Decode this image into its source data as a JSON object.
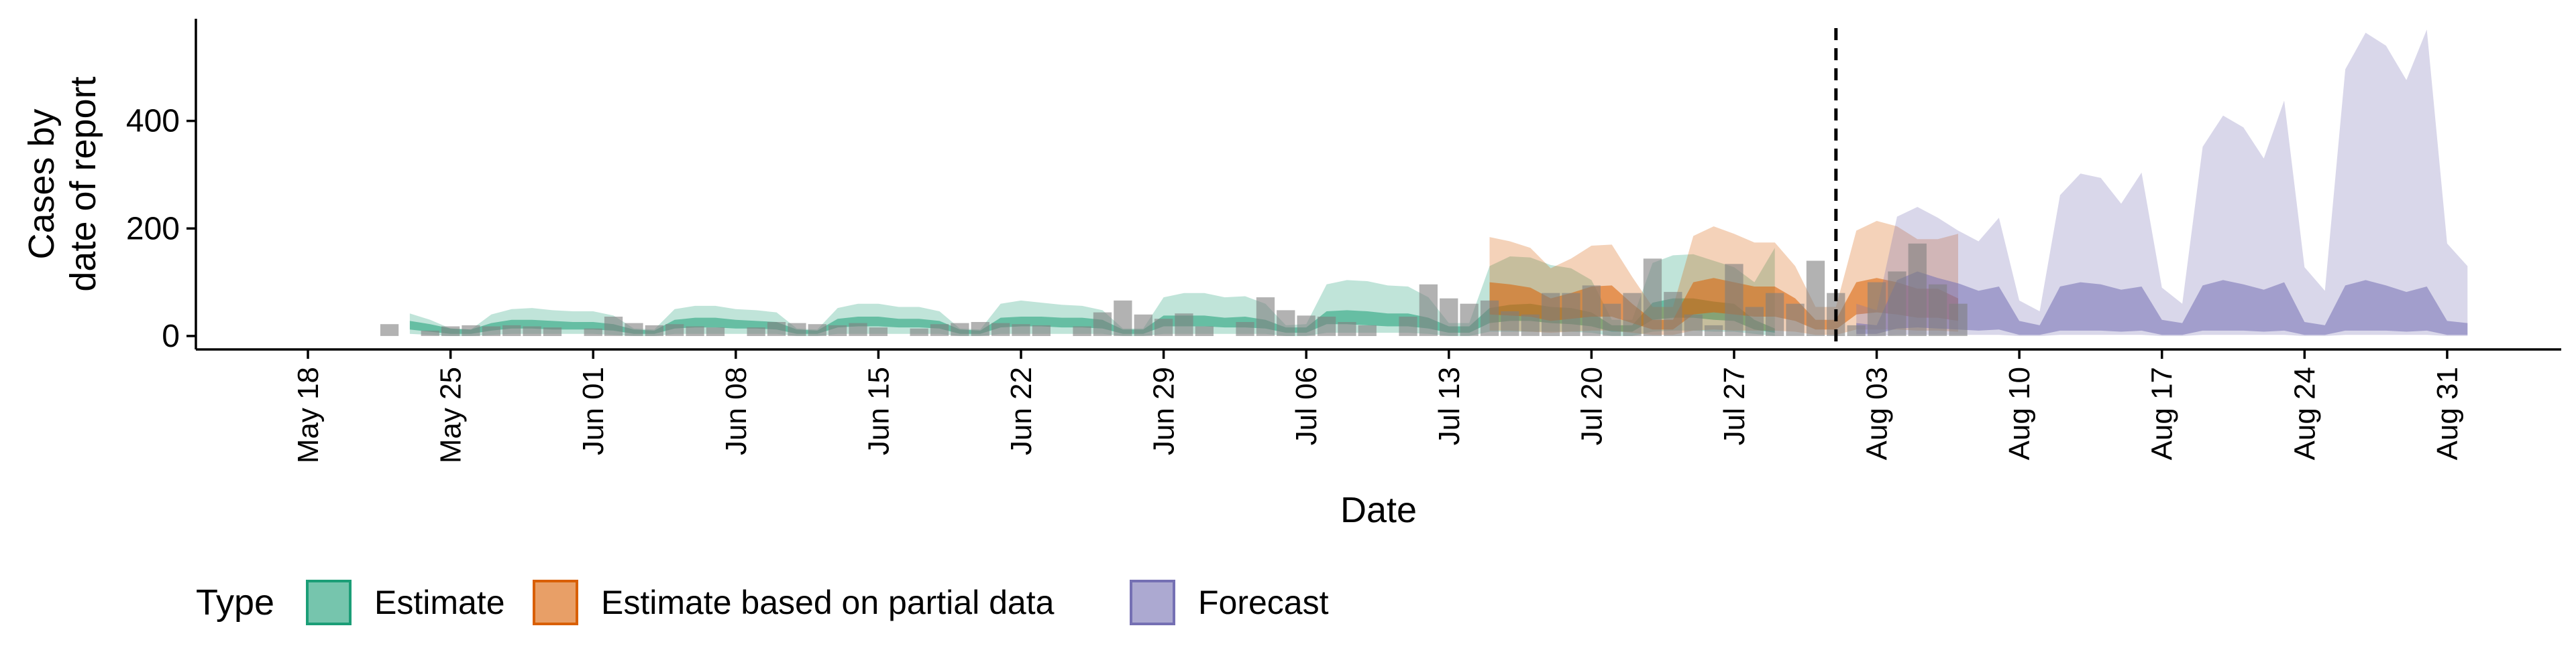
{
  "chart_data": {
    "type": "area",
    "xlabel": "Date",
    "ylabel": [
      "Cases by",
      "date of report"
    ],
    "x_range": [
      "2020-05-18",
      "2020-08-31"
    ],
    "ylim": [
      -25,
      590
    ],
    "y_ticks": [
      0,
      200,
      400
    ],
    "x_ticks": [
      {
        "date": "2020-05-18",
        "label": "May 18"
      },
      {
        "date": "2020-05-25",
        "label": "May 25"
      },
      {
        "date": "2020-06-01",
        "label": "Jun 01"
      },
      {
        "date": "2020-06-08",
        "label": "Jun 08"
      },
      {
        "date": "2020-06-15",
        "label": "Jun 15"
      },
      {
        "date": "2020-06-22",
        "label": "Jun 22"
      },
      {
        "date": "2020-06-29",
        "label": "Jun 29"
      },
      {
        "date": "2020-07-06",
        "label": "Jul 06"
      },
      {
        "date": "2020-07-13",
        "label": "Jul 13"
      },
      {
        "date": "2020-07-20",
        "label": "Jul 20"
      },
      {
        "date": "2020-07-27",
        "label": "Jul 27"
      },
      {
        "date": "2020-08-03",
        "label": "Aug 03"
      },
      {
        "date": "2020-08-10",
        "label": "Aug 10"
      },
      {
        "date": "2020-08-17",
        "label": "Aug 17"
      },
      {
        "date": "2020-08-24",
        "label": "Aug 24"
      },
      {
        "date": "2020-08-31",
        "label": "Aug 31"
      }
    ],
    "forecast_date": "2020-08-01",
    "grid": false,
    "legend": {
      "title": "Type",
      "position": "bottom",
      "entries": [
        {
          "label": "Estimate",
          "color": "#1b9e77"
        },
        {
          "label": "Estimate based on partial data",
          "color": "#d95f02"
        },
        {
          "label": "Forecast",
          "color": "#7570b3"
        }
      ]
    },
    "bar_color": "#7f7f7f",
    "series": [
      {
        "name": "Estimate",
        "color": "#1b9e77",
        "start_date": "2020-05-23",
        "inner_upper": [
          28,
          22,
          14,
          12,
          24,
          30,
          30,
          28,
          26,
          26,
          22,
          12,
          10,
          30,
          34,
          34,
          30,
          28,
          26,
          12,
          10,
          32,
          36,
          36,
          32,
          32,
          28,
          12,
          10,
          34,
          36,
          36,
          34,
          34,
          30,
          12,
          12,
          38,
          38,
          38,
          34,
          36,
          30,
          16,
          16,
          46,
          48,
          46,
          42,
          42,
          34,
          18,
          18,
          52,
          58,
          60,
          54,
          52,
          44,
          20,
          20,
          62,
          70,
          70,
          64,
          60,
          30,
          14
        ],
        "inner_lower": [
          12,
          8,
          4,
          4,
          10,
          14,
          14,
          12,
          12,
          12,
          10,
          4,
          4,
          14,
          16,
          16,
          14,
          14,
          12,
          4,
          4,
          16,
          18,
          18,
          16,
          16,
          14,
          4,
          4,
          16,
          18,
          18,
          16,
          16,
          14,
          4,
          4,
          18,
          18,
          18,
          16,
          16,
          14,
          6,
          6,
          22,
          22,
          20,
          18,
          18,
          14,
          6,
          6,
          24,
          28,
          28,
          24,
          22,
          18,
          8,
          8,
          30,
          34,
          34,
          30,
          28,
          12,
          6
        ],
        "outer_upper": [
          42,
          30,
          14,
          12,
          40,
          50,
          52,
          48,
          46,
          46,
          38,
          14,
          12,
          50,
          56,
          56,
          50,
          48,
          44,
          14,
          12,
          52,
          60,
          60,
          54,
          54,
          46,
          14,
          12,
          60,
          66,
          62,
          58,
          56,
          48,
          14,
          14,
          72,
          80,
          80,
          72,
          74,
          60,
          20,
          22,
          96,
          104,
          102,
          94,
          92,
          72,
          24,
          24,
          130,
          148,
          146,
          132,
          126,
          104,
          30,
          30,
          136,
          150,
          152,
          140,
          128,
          100,
          164
        ],
        "outer_lower": [
          4,
          2,
          0,
          0,
          2,
          4,
          4,
          4,
          4,
          4,
          2,
          0,
          0,
          4,
          4,
          4,
          4,
          4,
          4,
          0,
          0,
          4,
          4,
          4,
          4,
          4,
          4,
          0,
          0,
          4,
          4,
          4,
          4,
          4,
          4,
          0,
          0,
          4,
          4,
          4,
          4,
          4,
          4,
          0,
          0,
          6,
          6,
          6,
          6,
          6,
          4,
          0,
          0,
          8,
          8,
          8,
          8,
          8,
          6,
          0,
          0,
          8,
          10,
          10,
          8,
          8,
          4,
          0
        ]
      },
      {
        "name": "Estimate based on partial data",
        "color": "#d95f02",
        "start_date": "2020-07-15",
        "inner_upper": [
          100,
          96,
          90,
          70,
          80,
          92,
          94,
          60,
          30,
          30,
          100,
          108,
          100,
          92,
          92,
          70,
          30,
          30,
          100,
          108,
          100,
          88,
          88,
          70
        ],
        "inner_lower": [
          40,
          38,
          36,
          28,
          32,
          36,
          36,
          24,
          12,
          12,
          40,
          44,
          40,
          36,
          36,
          28,
          12,
          12,
          40,
          44,
          40,
          34,
          34,
          28
        ],
        "outer_upper": [
          184,
          176,
          164,
          126,
          144,
          168,
          170,
          110,
          54,
          54,
          186,
          204,
          190,
          174,
          174,
          130,
          54,
          54,
          196,
          214,
          204,
          180,
          180,
          190
        ],
        "outer_lower": [
          10,
          10,
          8,
          6,
          8,
          10,
          10,
          6,
          2,
          2,
          10,
          12,
          10,
          10,
          10,
          8,
          2,
          2,
          12,
          12,
          12,
          10,
          10,
          8
        ]
      },
      {
        "name": "Forecast",
        "color": "#7570b3",
        "start_date": "2020-08-02",
        "inner_upper": [
          24,
          20,
          104,
          120,
          108,
          98,
          84,
          92,
          28,
          20,
          92,
          100,
          96,
          86,
          92,
          30,
          24,
          94,
          104,
          96,
          86,
          100,
          26,
          20,
          94,
          104,
          94,
          82,
          92,
          28,
          24
        ],
        "inner_lower": [
          4,
          4,
          14,
          16,
          14,
          12,
          10,
          12,
          2,
          2,
          10,
          10,
          10,
          8,
          10,
          2,
          2,
          10,
          10,
          10,
          8,
          10,
          2,
          2,
          10,
          10,
          10,
          8,
          10,
          2,
          2
        ],
        "outer_upper": [
          60,
          48,
          222,
          240,
          220,
          196,
          176,
          220,
          66,
          46,
          262,
          302,
          294,
          246,
          304,
          90,
          60,
          352,
          410,
          388,
          330,
          438,
          128,
          84,
          496,
          564,
          540,
          476,
          570,
          172,
          130
        ],
        "outer_lower": [
          0,
          0,
          2,
          2,
          2,
          2,
          2,
          2,
          0,
          0,
          2,
          2,
          2,
          2,
          2,
          0,
          0,
          2,
          2,
          2,
          2,
          2,
          0,
          0,
          2,
          2,
          2,
          2,
          2,
          0,
          0
        ]
      }
    ],
    "reported_cases": {
      "name": "Cases by date of report",
      "start_date": "2020-05-22",
      "values": [
        22,
        0,
        10,
        18,
        20,
        18,
        20,
        18,
        16,
        0,
        14,
        36,
        24,
        20,
        22,
        18,
        16,
        0,
        16,
        26,
        24,
        22,
        20,
        24,
        16,
        0,
        14,
        22,
        24,
        26,
        24,
        22,
        20,
        0,
        18,
        44,
        66,
        40,
        32,
        42,
        18,
        0,
        26,
        72,
        48,
        38,
        36,
        26,
        20,
        0,
        36,
        96,
        70,
        60,
        66,
        46,
        40,
        80,
        80,
        94,
        60,
        80,
        144,
        82,
        40,
        20,
        134,
        54,
        80,
        60,
        140,
        80,
        20,
        100,
        120,
        172,
        96,
        60
      ]
    }
  }
}
